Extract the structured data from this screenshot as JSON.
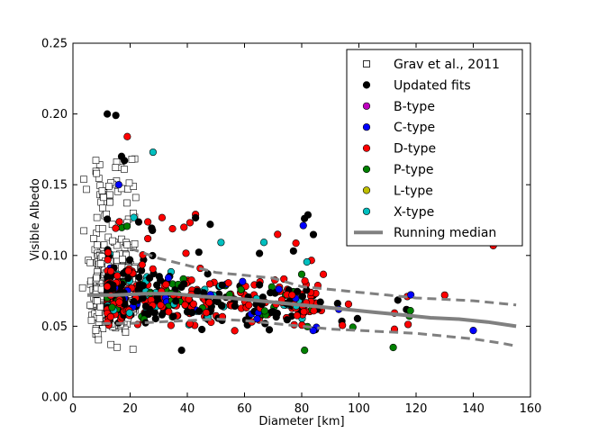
{
  "chart_data": {
    "type": "scatter",
    "xlabel": "Diameter [km]",
    "ylabel": "Visible Albedo",
    "xlim": [
      0,
      160
    ],
    "ylim": [
      0,
      0.25
    ],
    "x_ticks": [
      "0",
      "20",
      "40",
      "60",
      "80",
      "100",
      "120",
      "140",
      "160"
    ],
    "y_ticks": [
      "0.00",
      "0.05",
      "0.10",
      "0.15",
      "0.20",
      "0.25"
    ],
    "legend_position": "top-right",
    "grid": false,
    "legend": [
      {
        "label": "Grav et al., 2011",
        "marker": "open-square",
        "color": "#ffffff"
      },
      {
        "label": "Updated fits",
        "marker": "circle",
        "color": "#000000"
      },
      {
        "label": "B-type",
        "marker": "circle",
        "color": "#bf00bf"
      },
      {
        "label": "C-type",
        "marker": "circle",
        "color": "#0000ff"
      },
      {
        "label": "D-type",
        "marker": "circle",
        "color": "#ff0000"
      },
      {
        "label": "P-type",
        "marker": "circle",
        "color": "#008000"
      },
      {
        "label": "L-type",
        "marker": "circle",
        "color": "#bfbf00"
      },
      {
        "label": "X-type",
        "marker": "circle",
        "color": "#00bfbf"
      },
      {
        "label": "Running median",
        "marker": "line",
        "color": "#808080"
      }
    ],
    "running_median": {
      "x": [
        5,
        15,
        25,
        35,
        45,
        55,
        65,
        75,
        85,
        95,
        105,
        115,
        125,
        135,
        145,
        155
      ],
      "y": [
        0.072,
        0.072,
        0.073,
        0.073,
        0.071,
        0.07,
        0.068,
        0.066,
        0.064,
        0.062,
        0.06,
        0.058,
        0.056,
        0.055,
        0.053,
        0.05
      ]
    },
    "upper_band": {
      "x": [
        20,
        30,
        40,
        50,
        60,
        70,
        80,
        90,
        100,
        110,
        120,
        130,
        140,
        150,
        155
      ],
      "y": [
        0.105,
        0.098,
        0.093,
        0.088,
        0.086,
        0.084,
        0.078,
        0.076,
        0.074,
        0.072,
        0.07,
        0.069,
        0.068,
        0.066,
        0.065
      ]
    },
    "lower_band": {
      "x": [
        10,
        20,
        30,
        40,
        50,
        60,
        70,
        80,
        90,
        100,
        110,
        120,
        130,
        140,
        150,
        155
      ],
      "y": [
        0.052,
        0.052,
        0.053,
        0.054,
        0.055,
        0.054,
        0.052,
        0.05,
        0.048,
        0.047,
        0.046,
        0.045,
        0.043,
        0.041,
        0.038,
        0.036
      ]
    },
    "outliers": [
      {
        "type": "Updated fits",
        "x": 12,
        "y": 0.2
      },
      {
        "type": "Updated fits",
        "x": 15,
        "y": 0.199
      },
      {
        "type": "Updated fits",
        "x": 17,
        "y": 0.17
      },
      {
        "type": "Updated fits",
        "x": 18,
        "y": 0.167
      },
      {
        "type": "D-type",
        "x": 19,
        "y": 0.184
      },
      {
        "type": "X-type",
        "x": 28,
        "y": 0.173
      },
      {
        "type": "C-type",
        "x": 16,
        "y": 0.15
      },
      {
        "type": "Updated fits",
        "x": 48,
        "y": 0.122
      },
      {
        "type": "D-type",
        "x": 147,
        "y": 0.107
      },
      {
        "type": "C-type",
        "x": 140,
        "y": 0.047
      },
      {
        "type": "D-type",
        "x": 130,
        "y": 0.072
      },
      {
        "type": "P-type",
        "x": 118,
        "y": 0.061
      },
      {
        "type": "P-type",
        "x": 112,
        "y": 0.035
      },
      {
        "type": "P-type",
        "x": 81,
        "y": 0.033
      },
      {
        "type": "Updated fits",
        "x": 38,
        "y": 0.033
      },
      {
        "type": "C-type",
        "x": 84,
        "y": 0.047
      }
    ]
  }
}
